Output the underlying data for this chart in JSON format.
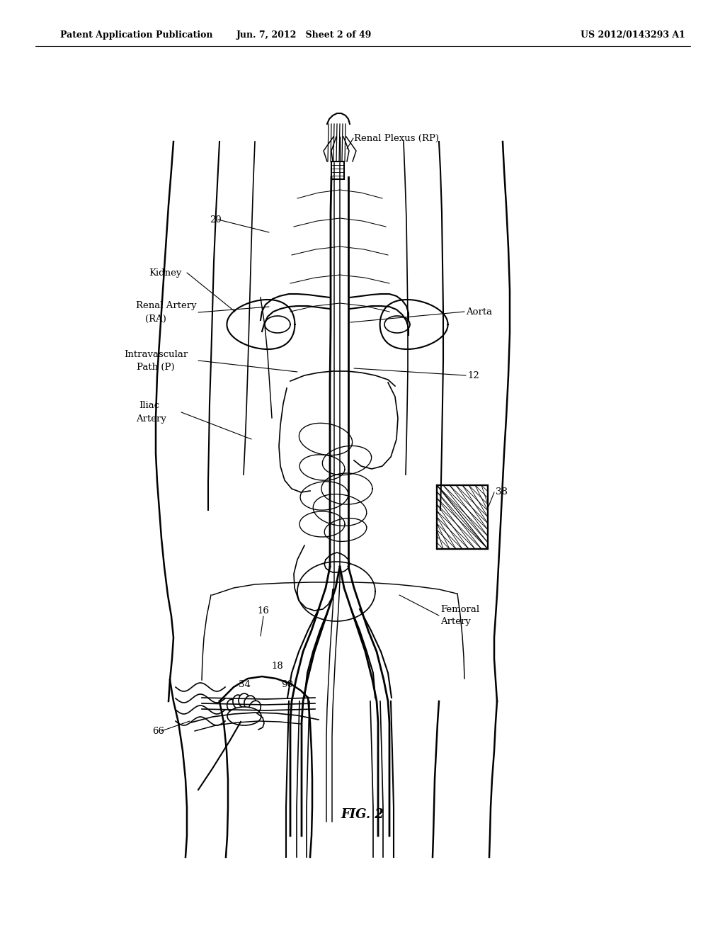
{
  "background_color": "#ffffff",
  "header_left": "Patent Application Publication",
  "header_center": "Jun. 7, 2012   Sheet 2 of 49",
  "header_right": "US 2012/0143293 A1",
  "figure_label": "FIG. 2",
  "labels": {
    "renal_plexus": "Renal Plexus (RP)",
    "kidney": "Kidney",
    "renal_artery_1": "Renal Artery",
    "renal_artery_2": "(RA)",
    "intravascular_1": "Intravascular",
    "intravascular_2": "Path (P)",
    "iliac_1": "Iliac",
    "iliac_2": "Artery",
    "aorta": "Aorta",
    "femoral_1": "Femoral",
    "femoral_2": "Artery",
    "num_20": "20",
    "num_12": "12",
    "num_38": "38",
    "num_16": "16",
    "num_18": "18",
    "num_34": "34",
    "num_90": "90",
    "num_66": "66"
  },
  "line_color": "#000000",
  "line_width": 1.5,
  "font_size_header": 9,
  "font_size_label": 9.5,
  "font_size_number": 9.5,
  "font_size_fig": 13
}
